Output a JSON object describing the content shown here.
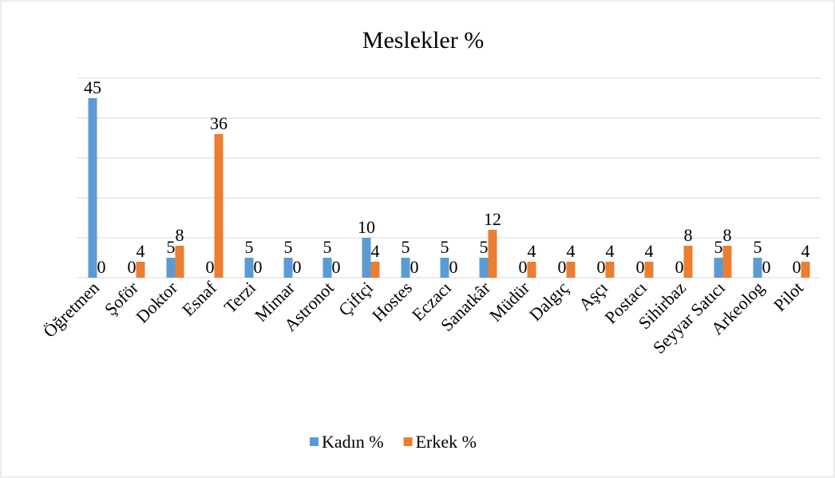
{
  "chart_data": {
    "type": "bar",
    "title": "Meslekler %",
    "categories": [
      "Öğretmen",
      "Şoför",
      "Doktor",
      "Esnaf",
      "Terzi",
      "Mimar",
      "Astronot",
      "Çiftçi",
      "Hostes",
      "Eczacı",
      "Sanatkâr",
      "Müdür",
      "Dalgıç",
      "Aşçı",
      "Postacı",
      "Sihirbaz",
      "Seyyar Satıcı",
      "Arkeolog",
      "Pilot"
    ],
    "series": [
      {
        "name": "Kadın %",
        "color": "#5b9bd5",
        "values": [
          45,
          0,
          5,
          0,
          5,
          5,
          5,
          10,
          5,
          5,
          5,
          0,
          0,
          0,
          0,
          0,
          5,
          5,
          0
        ]
      },
      {
        "name": "Erkek %",
        "color": "#ed7d31",
        "values": [
          0,
          4,
          8,
          36,
          0,
          0,
          0,
          4,
          0,
          0,
          12,
          4,
          4,
          4,
          4,
          8,
          8,
          0,
          4
        ]
      }
    ],
    "ylim": [
      0,
      50
    ],
    "yticks": [
      0,
      10,
      20,
      30,
      40,
      50
    ],
    "grid": true,
    "legend": "bottom"
  }
}
